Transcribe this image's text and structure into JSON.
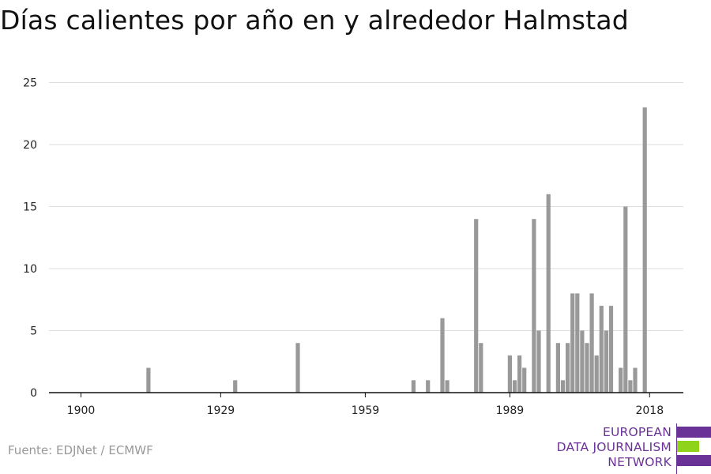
{
  "title": "Días calientes por año en y alrededor Halmstad",
  "source": "Fuente: EDJNet / ECMWF",
  "logo": {
    "line1": "EUROPEAN",
    "line2": "DATA JOURNALISM",
    "line3": "NETWORK",
    "colors": {
      "purple": "#6a3296",
      "green": "#8fd41a"
    }
  },
  "chart_data": {
    "type": "bar",
    "title": "Días calientes por año en y alrededor Halmstad",
    "xlabel": "",
    "ylabel": "",
    "xlim": [
      1900,
      2018
    ],
    "ylim": [
      0,
      25
    ],
    "x_ticks": [
      1900,
      1929,
      1959,
      1989,
      2018
    ],
    "y_ticks": [
      0,
      5,
      10,
      15,
      20,
      25
    ],
    "grid": true,
    "bar_color": "#999999",
    "x": [
      1914,
      1932,
      1945,
      1969,
      1972,
      1975,
      1976,
      1982,
      1983,
      1989,
      1990,
      1991,
      1992,
      1994,
      1995,
      1997,
      1999,
      2000,
      2001,
      2002,
      2003,
      2004,
      2005,
      2006,
      2007,
      2008,
      2009,
      2010,
      2012,
      2013,
      2014,
      2015,
      2017
    ],
    "values": [
      2,
      1,
      4,
      1,
      1,
      6,
      1,
      14,
      4,
      3,
      1,
      3,
      2,
      14,
      5,
      16,
      4,
      1,
      4,
      8,
      8,
      5,
      4,
      8,
      3,
      7,
      5,
      7,
      2,
      15,
      1,
      2,
      23
    ]
  }
}
